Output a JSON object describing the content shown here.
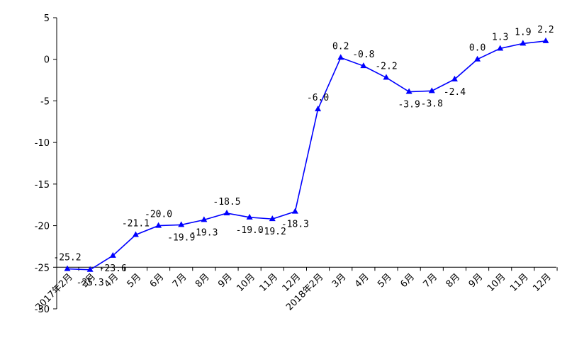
{
  "chart_data": {
    "type": "line",
    "categories": [
      "2017年2月",
      "3月",
      "4月",
      "5月",
      "6月",
      "7月",
      "8月",
      "9月",
      "10月",
      "11月",
      "12月",
      "2018年2月",
      "3月",
      "4月",
      "5月",
      "6月",
      "7月",
      "8月",
      "9月",
      "10月",
      "11月",
      "12月"
    ],
    "series": [
      {
        "color": "#0000ff",
        "values": [
          -25.2,
          -25.3,
          -23.6,
          -21.1,
          -20.0,
          -19.9,
          -19.3,
          -18.5,
          -19.0,
          -19.2,
          -18.3,
          -6.0,
          0.2,
          -0.8,
          -2.2,
          -3.9,
          -3.8,
          -2.4,
          0.0,
          1.3,
          1.9,
          2.2
        ],
        "value_labels": [
          "-25.2",
          "-25.3",
          "-23.6",
          "-21.1",
          "-20.0",
          "-19.9",
          "-19.3",
          "-18.5",
          "-19.0",
          "-19.2",
          "-18.3",
          "-6.0",
          "0.2",
          "-0.8",
          "-2.2",
          "-3.9",
          "-3.8",
          "-2.4",
          "0.0",
          "1.3",
          "1.9",
          "2.2"
        ]
      }
    ],
    "ylim": [
      -30,
      5
    ],
    "yticks": [
      -30,
      -25,
      -20,
      -15,
      -10,
      -5,
      0,
      5
    ],
    "x_axis_at": -25
  }
}
